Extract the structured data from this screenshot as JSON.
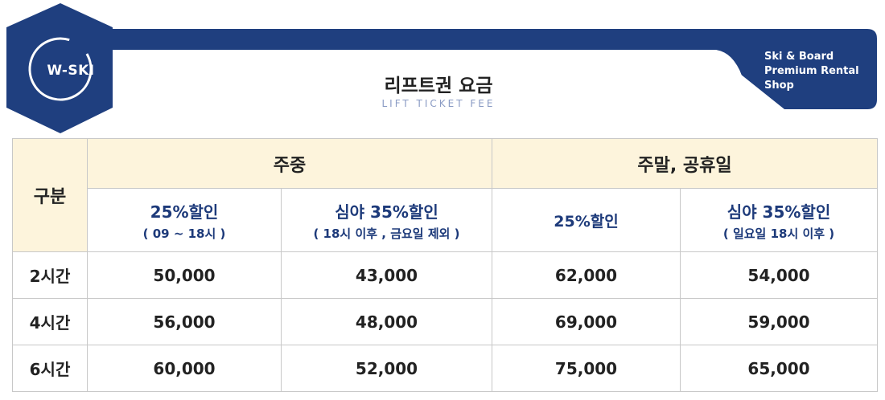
{
  "header": {
    "logo_text": "W-SKI",
    "title_ko": "리프트권 요금",
    "title_en": "LIFT TICKET FEE",
    "shop_lines": [
      "Ski & Board",
      "Premium Rental",
      "Shop"
    ],
    "brand_color": "#1f3f7f"
  },
  "table": {
    "category_label": "구분",
    "groups": [
      "주중",
      "주말,  공휴일"
    ],
    "subheaders": [
      {
        "main": "25%할인",
        "note": "( 09 ~ 18시 )"
      },
      {
        "main": "심야 35%할인",
        "note": "( 18시 이후 , 금요일 제외 )"
      },
      {
        "main": "25%할인",
        "note": ""
      },
      {
        "main": "심야 35%할인",
        "note": "( 일요일 18시 이후 )"
      }
    ],
    "rows": [
      {
        "label": "2시간",
        "values": [
          "50,000",
          "43,000",
          "62,000",
          "54,000"
        ]
      },
      {
        "label": "4시간",
        "values": [
          "56,000",
          "48,000",
          "69,000",
          "59,000"
        ]
      },
      {
        "label": "6시간",
        "values": [
          "60,000",
          "52,000",
          "75,000",
          "65,000"
        ]
      }
    ],
    "header_bg": "#fdf4dc"
  }
}
